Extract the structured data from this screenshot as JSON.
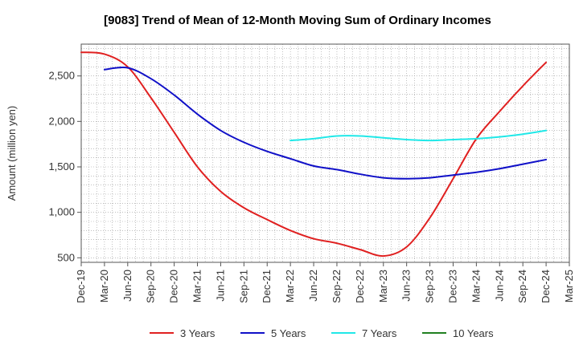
{
  "chart_data": {
    "type": "line",
    "title": "[9083]  Trend of Mean of 12-Month Moving Sum of Ordinary Incomes",
    "ylabel": "Amount (million yen)",
    "xlabel": "",
    "ylim": [
      450,
      2850
    ],
    "yticks": [
      500,
      1000,
      1500,
      2000,
      2500
    ],
    "ytick_labels": [
      "500",
      "1,000",
      "1,500",
      "2,000",
      "2,500"
    ],
    "x_range": [
      "2019-12",
      "2025-03"
    ],
    "xtick_labels": [
      "Dec-19",
      "Mar-20",
      "Jun-20",
      "Sep-20",
      "Dec-20",
      "Mar-21",
      "Jun-21",
      "Sep-21",
      "Dec-21",
      "Mar-22",
      "Jun-22",
      "Sep-22",
      "Dec-22",
      "Mar-23",
      "Jun-23",
      "Sep-23",
      "Dec-23",
      "Mar-24",
      "Jun-24",
      "Sep-24",
      "Dec-24",
      "Mar-25"
    ],
    "legend": [
      "3 Years",
      "5 Years",
      "7 Years",
      "10 Years"
    ],
    "grid": true,
    "series": [
      {
        "name": "3 Years",
        "color": "#e02020",
        "points": [
          [
            "2019-12",
            2760
          ],
          [
            "2020-03",
            2740
          ],
          [
            "2020-06",
            2600
          ],
          [
            "2020-09",
            2260
          ],
          [
            "2020-12",
            1880
          ],
          [
            "2021-03",
            1500
          ],
          [
            "2021-06",
            1230
          ],
          [
            "2021-09",
            1050
          ],
          [
            "2021-12",
            920
          ],
          [
            "2022-03",
            800
          ],
          [
            "2022-06",
            710
          ],
          [
            "2022-09",
            660
          ],
          [
            "2022-12",
            590
          ],
          [
            "2023-03",
            520
          ],
          [
            "2023-06",
            620
          ],
          [
            "2023-09",
            940
          ],
          [
            "2023-12",
            1370
          ],
          [
            "2024-03",
            1810
          ],
          [
            "2024-06",
            2110
          ],
          [
            "2024-09",
            2390
          ],
          [
            "2024-12",
            2650
          ]
        ]
      },
      {
        "name": "5 Years",
        "color": "#1010c8",
        "points": [
          [
            "2020-03",
            2570
          ],
          [
            "2020-06",
            2590
          ],
          [
            "2020-09",
            2470
          ],
          [
            "2020-12",
            2290
          ],
          [
            "2021-03",
            2080
          ],
          [
            "2021-06",
            1900
          ],
          [
            "2021-09",
            1770
          ],
          [
            "2021-12",
            1670
          ],
          [
            "2022-03",
            1590
          ],
          [
            "2022-06",
            1510
          ],
          [
            "2022-09",
            1470
          ],
          [
            "2022-12",
            1420
          ],
          [
            "2023-03",
            1380
          ],
          [
            "2023-06",
            1370
          ],
          [
            "2023-09",
            1380
          ],
          [
            "2023-12",
            1410
          ],
          [
            "2024-03",
            1440
          ],
          [
            "2024-06",
            1480
          ],
          [
            "2024-09",
            1530
          ],
          [
            "2024-12",
            1580
          ]
        ]
      },
      {
        "name": "7 Years",
        "color": "#20e8e8",
        "points": [
          [
            "2022-03",
            1790
          ],
          [
            "2022-06",
            1810
          ],
          [
            "2022-09",
            1840
          ],
          [
            "2022-12",
            1840
          ],
          [
            "2023-03",
            1820
          ],
          [
            "2023-06",
            1800
          ],
          [
            "2023-09",
            1790
          ],
          [
            "2023-12",
            1800
          ],
          [
            "2024-03",
            1810
          ],
          [
            "2024-06",
            1830
          ],
          [
            "2024-09",
            1860
          ],
          [
            "2024-12",
            1900
          ]
        ]
      },
      {
        "name": "10 Years",
        "color": "#208020",
        "points": []
      }
    ]
  }
}
